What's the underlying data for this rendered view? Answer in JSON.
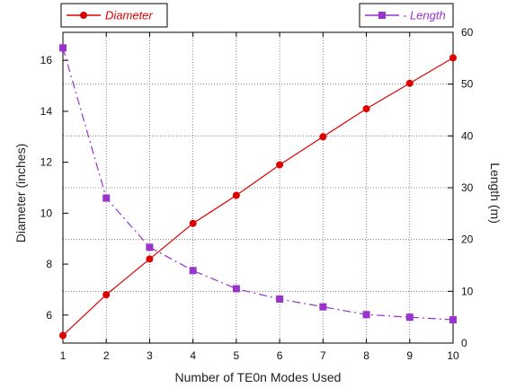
{
  "chart_data": {
    "type": "line",
    "x": [
      1,
      2,
      3,
      4,
      5,
      6,
      7,
      8,
      9,
      10
    ],
    "xlabel": "Number of TE0n Modes Used",
    "xlim": [
      1,
      10
    ],
    "x_ticks": [
      "1",
      "2",
      "3",
      "4",
      "5",
      "6",
      "7",
      "8",
      "9",
      "10"
    ],
    "series": [
      {
        "name": "Diameter",
        "axis": "left",
        "marker": "circle",
        "color": "#dd0000",
        "line_style": "solid",
        "values": [
          5.2,
          6.8,
          8.2,
          9.6,
          10.7,
          11.9,
          13.0,
          14.1,
          15.1,
          16.1
        ]
      },
      {
        "name": "- Length",
        "axis": "right",
        "marker": "square",
        "color": "#9933cc",
        "line_style": "dashed",
        "values": [
          57,
          28,
          18.5,
          14,
          10.5,
          8.5,
          7,
          5.5,
          5,
          4.5
        ]
      }
    ],
    "ylabel_left": "Diameter (inches)",
    "ylim_left": [
      4.9,
      17.1
    ],
    "y_ticks_left": [
      "6",
      "8",
      "10",
      "12",
      "14",
      "16"
    ],
    "ylabel_right": "Length (m)",
    "ylim_right": [
      0,
      60
    ],
    "y_ticks_right": [
      "0",
      "10",
      "20",
      "30",
      "40",
      "50",
      "60"
    ],
    "grid": true,
    "legend_placement": "top"
  }
}
